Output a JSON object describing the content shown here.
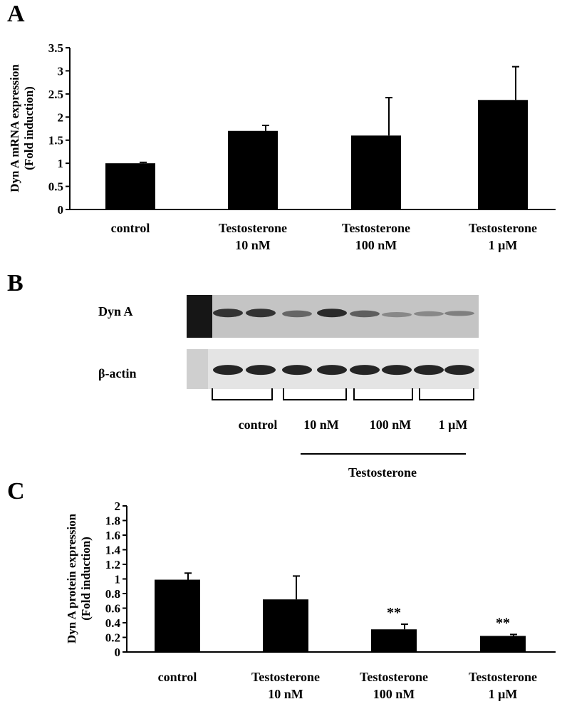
{
  "panels": {
    "a": {
      "letter": "A"
    },
    "b": {
      "letter": "B"
    },
    "c": {
      "letter": "C"
    }
  },
  "blot": {
    "row_labels": [
      "Dyn A",
      "β-actin"
    ],
    "group_labels": [
      "control",
      "10 nM",
      "100 nM",
      "1 μM"
    ],
    "treatment_label": "Testosterone",
    "colors": {
      "band": "#1a1a1a",
      "background_top": "#c4c4c4",
      "background_bottom": "#e4e4e4"
    }
  },
  "chart_data": [
    {
      "type": "bar",
      "panel": "A",
      "ylabel": [
        "Dyn A mRNA expression",
        "(Fold induction)"
      ],
      "categories": [
        [
          "control"
        ],
        [
          "Testosterone",
          "10 nM"
        ],
        [
          "Testosterone",
          "100 nM"
        ],
        [
          "Testosterone",
          "1 μM"
        ]
      ],
      "values": [
        1.0,
        1.7,
        1.6,
        2.37
      ],
      "errors": [
        0.02,
        0.12,
        0.82,
        0.72
      ],
      "annotations": [
        "",
        "",
        "",
        ""
      ],
      "ylim": [
        0,
        3.5
      ],
      "yticks": [
        0,
        0.5,
        1,
        1.5,
        2,
        2.5,
        3,
        3.5
      ],
      "ytick_labels": [
        "0",
        "0.5",
        "1",
        "1.5",
        "2",
        "2.5",
        "3",
        "3.5"
      ],
      "bar_color": "#000000",
      "grid": false
    },
    {
      "type": "bar",
      "panel": "C",
      "ylabel": [
        "Dyn A  protein expression",
        "(Fold induction)"
      ],
      "categories": [
        [
          "control"
        ],
        [
          "Testosterone",
          "10 nM"
        ],
        [
          "Testosterone",
          "100 nM"
        ],
        [
          "Testosterone",
          "1 μM"
        ]
      ],
      "values": [
        0.99,
        0.72,
        0.31,
        0.22
      ],
      "errors": [
        0.09,
        0.32,
        0.07,
        0.02
      ],
      "annotations": [
        "",
        "",
        "**",
        "**"
      ],
      "ylim": [
        0,
        2
      ],
      "yticks": [
        0,
        0.2,
        0.4,
        0.6,
        0.8,
        1,
        1.2,
        1.4,
        1.6,
        1.8,
        2
      ],
      "ytick_labels": [
        "0",
        "0.2",
        "0.4",
        "0.6",
        "0.8",
        "1",
        "1.2",
        "1.4",
        "1.6",
        "1.8",
        "2"
      ],
      "bar_color": "#000000",
      "grid": false
    }
  ]
}
